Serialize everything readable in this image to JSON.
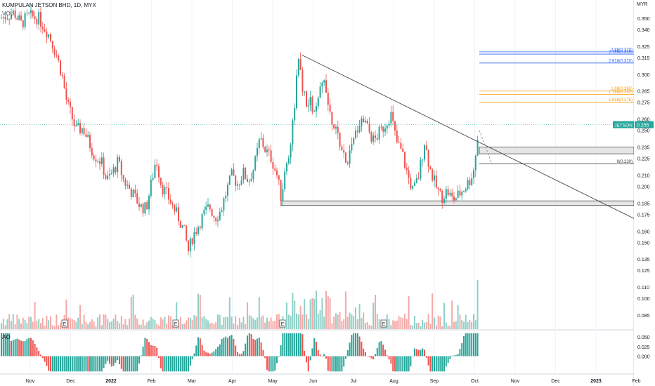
{
  "header": {
    "title": "KUMPULAN JETSON BHD, 1D, MYX",
    "volume_label": "VOL",
    "currency": "MYR"
  },
  "ao_panel": {
    "label": "AO"
  },
  "colors": {
    "up": "#26a69a",
    "down": "#ef5350",
    "vol_up": "#8fd1c8",
    "vol_down": "#f4a9a7",
    "fib_blue": "#2962ff",
    "fib_orange": "#ff9800",
    "trendline": "#444444",
    "price_label_bg": "#26a69a"
  },
  "chart_data": {
    "type": "candlestick",
    "price_axis": {
      "ticks": [
        "0.350",
        "0.340",
        "0.325",
        "0.315",
        "0.300",
        "0.285",
        "0.275",
        "0.260",
        "0.250",
        "0.235",
        "0.225",
        "0.210",
        "0.200",
        "0.185",
        "0.175",
        "0.160",
        "0.150",
        "0.135",
        "0.125",
        "0.110",
        "0.100",
        "0.085"
      ],
      "range": [
        0.075,
        0.36
      ]
    },
    "time_axis": {
      "ticks": [
        "Nov",
        "Dec",
        "2022",
        "Feb",
        "Mar",
        "Apr",
        "May",
        "Jun",
        "Jul",
        "Aug",
        "Sep",
        "Oct",
        "Nov",
        "Dec",
        "2023",
        "Feb"
      ]
    },
    "last_price": {
      "symbol": "JETSON",
      "value": "0.255"
    },
    "fib_levels": [
      {
        "text": "2.88(0.320)",
        "value": 0.32,
        "color": "blue"
      },
      {
        "text": "2.786(0.318)",
        "value": 0.318,
        "color": "blue"
      },
      {
        "text": "2.618(0.310)",
        "value": 0.31,
        "color": "blue"
      },
      {
        "text": "1.88(0.285)",
        "value": 0.285,
        "color": "orange"
      },
      {
        "text": "1.786(0.282)",
        "value": 0.282,
        "color": "orange"
      },
      {
        "text": "1.618(0.275)",
        "value": 0.275,
        "color": "orange"
      },
      {
        "text": "0(0.220)",
        "value": 0.22,
        "color": "gray"
      }
    ],
    "zones": [
      {
        "from": 0.229,
        "to": 0.235
      },
      {
        "from": 0.183,
        "to": 0.187
      }
    ],
    "earnings_markers": [
      "E",
      "E",
      "E",
      "E"
    ],
    "ao_axis": {
      "ticks": [
        "0.050",
        "0.025",
        "0.000"
      ],
      "range": [
        -0.045,
        0.065
      ]
    },
    "price_path": [
      [
        0,
        0.35
      ],
      [
        20,
        0.355
      ],
      [
        30,
        0.345
      ],
      [
        40,
        0.352
      ],
      [
        55,
        0.35
      ],
      [
        70,
        0.335
      ],
      [
        80,
        0.318
      ],
      [
        88,
        0.3
      ],
      [
        95,
        0.275
      ],
      [
        102,
        0.262
      ],
      [
        108,
        0.25
      ],
      [
        118,
        0.252
      ],
      [
        126,
        0.24
      ],
      [
        134,
        0.228
      ],
      [
        144,
        0.222
      ],
      [
        152,
        0.205
      ],
      [
        160,
        0.212
      ],
      [
        168,
        0.222
      ],
      [
        176,
        0.205
      ],
      [
        184,
        0.198
      ],
      [
        192,
        0.19
      ],
      [
        200,
        0.182
      ],
      [
        208,
        0.18
      ],
      [
        216,
        0.205
      ],
      [
        222,
        0.225
      ],
      [
        230,
        0.2
      ],
      [
        238,
        0.192
      ],
      [
        246,
        0.182
      ],
      [
        254,
        0.172
      ],
      [
        262,
        0.16
      ],
      [
        268,
        0.142
      ],
      [
        274,
        0.155
      ],
      [
        282,
        0.165
      ],
      [
        290,
        0.175
      ],
      [
        298,
        0.182
      ],
      [
        306,
        0.172
      ],
      [
        314,
        0.178
      ],
      [
        322,
        0.195
      ],
      [
        330,
        0.21
      ],
      [
        338,
        0.202
      ],
      [
        346,
        0.212
      ],
      [
        354,
        0.205
      ],
      [
        362,
        0.218
      ],
      [
        370,
        0.243
      ],
      [
        378,
        0.232
      ],
      [
        386,
        0.225
      ],
      [
        394,
        0.21
      ],
      [
        400,
        0.19
      ],
      [
        406,
        0.215
      ],
      [
        412,
        0.232
      ],
      [
        418,
        0.265
      ],
      [
        424,
        0.312
      ],
      [
        430,
        0.29
      ],
      [
        436,
        0.27
      ],
      [
        442,
        0.275
      ],
      [
        448,
        0.262
      ],
      [
        456,
        0.285
      ],
      [
        462,
        0.3
      ],
      [
        468,
        0.268
      ],
      [
        476,
        0.255
      ],
      [
        484,
        0.238
      ],
      [
        492,
        0.22
      ],
      [
        500,
        0.232
      ],
      [
        508,
        0.252
      ],
      [
        516,
        0.262
      ],
      [
        524,
        0.25
      ],
      [
        532,
        0.24
      ],
      [
        540,
        0.248
      ],
      [
        548,
        0.255
      ],
      [
        556,
        0.265
      ],
      [
        564,
        0.24
      ],
      [
        572,
        0.23
      ],
      [
        580,
        0.21
      ],
      [
        588,
        0.195
      ],
      [
        596,
        0.21
      ],
      [
        604,
        0.24
      ],
      [
        612,
        0.215
      ],
      [
        620,
        0.2
      ],
      [
        628,
        0.19
      ],
      [
        636,
        0.196
      ],
      [
        644,
        0.188
      ],
      [
        652,
        0.192
      ],
      [
        660,
        0.198
      ],
      [
        668,
        0.205
      ],
      [
        674,
        0.215
      ],
      [
        682,
        0.255
      ]
    ]
  }
}
